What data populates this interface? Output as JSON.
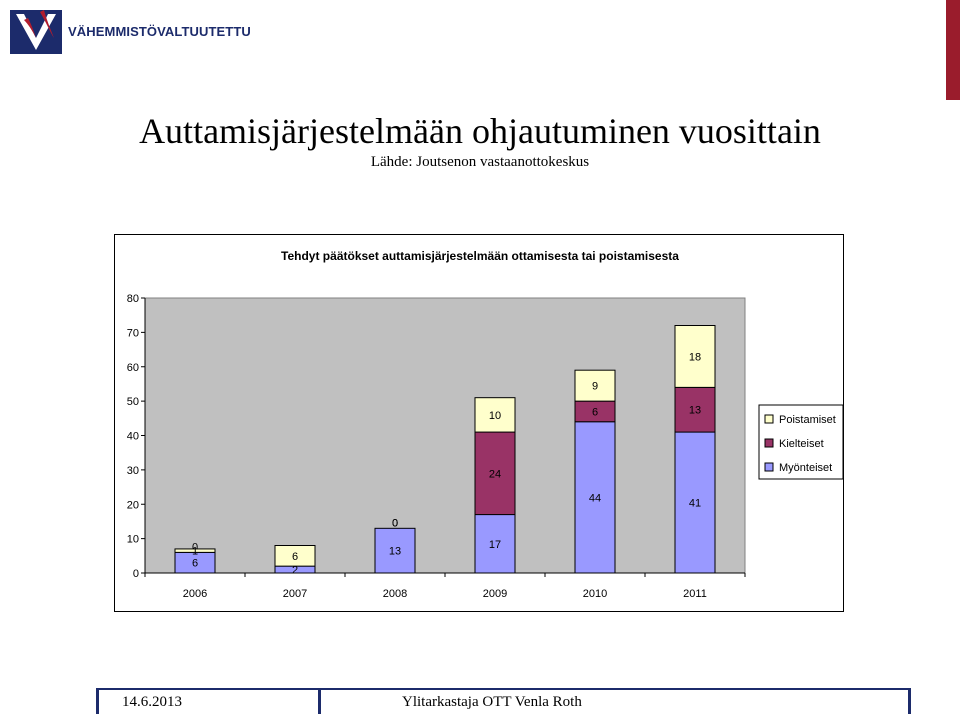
{
  "header": {
    "logo_text": "VÄHEMMISTÖVALTUUTETTU",
    "logo_icon": "vahemmistovaltuutettu-v-logo-icon"
  },
  "slide": {
    "title": "Auttamisjärjestelmään ohjautuminen vuosittain",
    "subtitle": "Lähde: Joutsenon vastaanottokeskus"
  },
  "footer": {
    "date": "14.6.2013",
    "author": "Ylitarkastaja OTT Venla Roth"
  },
  "chart_data": {
    "type": "bar",
    "stacked": true,
    "title": "Tehdyt päätökset auttamisjärjestelmään ottamisesta tai poistamisesta",
    "categories": [
      "2006",
      "2007",
      "2008",
      "2009",
      "2010",
      "2011"
    ],
    "series": [
      {
        "name": "Myönteiset",
        "color": "#9999ff",
        "values": [
          6,
          2,
          13,
          17,
          44,
          41
        ]
      },
      {
        "name": "Kielteiset",
        "color": "#993366",
        "values": [
          0,
          0,
          0,
          24,
          6,
          13
        ]
      },
      {
        "name": "Poistamiset",
        "color": "#ffffcc",
        "values": [
          1,
          6,
          0,
          10,
          9,
          18
        ]
      }
    ],
    "ylim": [
      0,
      80
    ],
    "yticks": [
      "0",
      "10",
      "20",
      "30",
      "40",
      "50",
      "60",
      "70",
      "80"
    ],
    "grid": false,
    "plot_background": "#c0c0c0",
    "legend_position": "right",
    "legend_order": [
      "Poistamiset",
      "Kielteiset",
      "Myönteiset"
    ]
  }
}
